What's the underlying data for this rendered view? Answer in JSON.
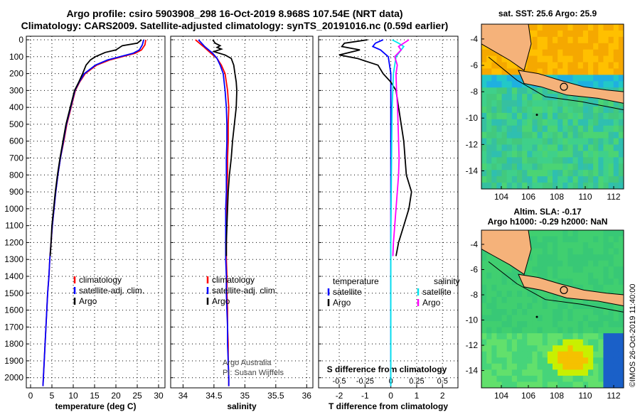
{
  "header": {
    "title_line1": "Argo profile: csiro 5903908_298 16-Oct-2019 8.968S 107.54E (NRT data)",
    "title_line2": "Climatology: CARS2009. Satellite-adjusted climatology: synTS_20191016.nc (0.59d earlier)"
  },
  "credit": "©IMOS 26-Oct-2019 11:40:00",
  "watermark": [
    "Argo Australia",
    "PI: Susan Wijffels"
  ],
  "colors": {
    "climatology": "#ff0000",
    "satellite": "#0000ff",
    "argo": "#000000",
    "sat_salinity": "#00e5ee",
    "argo_salinity": "#ff00ff",
    "land": "#f5b27a"
  },
  "chart_data": [
    {
      "type": "line",
      "id": "temperature",
      "xlabel": "temperature (deg C)",
      "ylabel": "",
      "xlim": [
        -1,
        31.5
      ],
      "ylim": [
        2060,
        0
      ],
      "xticks": [
        0,
        5,
        10,
        15,
        20,
        25,
        30
      ],
      "yticks": [
        0,
        100,
        200,
        300,
        400,
        500,
        600,
        700,
        800,
        900,
        1000,
        1100,
        1200,
        1300,
        1400,
        1500,
        1600,
        1700,
        1800,
        1900,
        2000
      ],
      "grid": true,
      "legend": {
        "position": "lower-center",
        "entries": [
          "climatology",
          "satellite-adj. clim.",
          "Argo"
        ]
      },
      "series": [
        {
          "name": "climatology",
          "color": "#ff0000",
          "points": [
            [
              27.0,
              0
            ],
            [
              26.8,
              30
            ],
            [
              26.0,
              60
            ],
            [
              24.5,
              80
            ],
            [
              21.5,
              100
            ],
            [
              18.5,
              120
            ],
            [
              15.5,
              150
            ],
            [
              12.8,
              200
            ],
            [
              11.5,
              250
            ],
            [
              10.5,
              300
            ],
            [
              9.5,
              400
            ],
            [
              8.5,
              500
            ],
            [
              7.8,
              600
            ],
            [
              7.0,
              700
            ],
            [
              6.4,
              800
            ],
            [
              5.9,
              900
            ],
            [
              5.5,
              1000
            ],
            [
              5.1,
              1100
            ],
            [
              4.8,
              1200
            ],
            [
              4.5,
              1300
            ],
            [
              4.3,
              1400
            ],
            [
              4.0,
              1500
            ],
            [
              3.8,
              1600
            ],
            [
              3.6,
              1700
            ],
            [
              3.4,
              1800
            ],
            [
              3.2,
              1900
            ],
            [
              3.0,
              2000
            ],
            [
              2.9,
              2050
            ]
          ]
        },
        {
          "name": "satellite-adj. clim.",
          "color": "#0000ff",
          "points": [
            [
              26.5,
              0
            ],
            [
              26.2,
              30
            ],
            [
              25.5,
              60
            ],
            [
              24.0,
              80
            ],
            [
              21.0,
              100
            ],
            [
              18.0,
              120
            ],
            [
              15.2,
              150
            ],
            [
              12.6,
              200
            ],
            [
              11.4,
              250
            ],
            [
              10.4,
              300
            ],
            [
              9.4,
              400
            ],
            [
              8.4,
              500
            ],
            [
              7.7,
              600
            ],
            [
              7.0,
              700
            ],
            [
              6.4,
              800
            ],
            [
              5.9,
              900
            ],
            [
              5.5,
              1000
            ],
            [
              5.1,
              1100
            ],
            [
              4.8,
              1200
            ],
            [
              4.5,
              1300
            ],
            [
              4.3,
              1400
            ],
            [
              4.0,
              1500
            ],
            [
              3.8,
              1600
            ],
            [
              3.6,
              1700
            ],
            [
              3.4,
              1800
            ],
            [
              3.2,
              1900
            ],
            [
              3.0,
              2000
            ],
            [
              2.9,
              2050
            ]
          ]
        },
        {
          "name": "Argo",
          "color": "#000000",
          "points": [
            [
              26.0,
              0
            ],
            [
              25.0,
              20
            ],
            [
              21.5,
              35
            ],
            [
              20.0,
              60
            ],
            [
              17.5,
              75
            ],
            [
              15.2,
              100
            ],
            [
              14.0,
              120
            ],
            [
              13.0,
              150
            ],
            [
              12.2,
              200
            ],
            [
              11.3,
              250
            ],
            [
              10.3,
              300
            ],
            [
              9.3,
              400
            ],
            [
              8.3,
              500
            ],
            [
              7.6,
              600
            ],
            [
              6.9,
              700
            ],
            [
              6.3,
              800
            ],
            [
              5.8,
              900
            ],
            [
              5.4,
              1000
            ],
            [
              5.0,
              1100
            ],
            [
              4.8,
              1200
            ],
            [
              4.6,
              1280
            ]
          ]
        }
      ]
    },
    {
      "type": "line",
      "id": "salinity",
      "xlabel": "salinity",
      "ylabel": "",
      "xlim": [
        33.8,
        36.1
      ],
      "ylim": [
        2060,
        0
      ],
      "xticks": [
        34,
        34.5,
        35,
        35.5,
        36
      ],
      "grid": true,
      "legend": {
        "position": "lower-center",
        "entries": [
          "climatology",
          "satellite-adj. clim.",
          "Argo"
        ]
      },
      "series": [
        {
          "name": "climatology",
          "color": "#ff0000",
          "points": [
            [
              34.2,
              0
            ],
            [
              34.33,
              40
            ],
            [
              34.45,
              80
            ],
            [
              34.55,
              110
            ],
            [
              34.62,
              150
            ],
            [
              34.68,
              200
            ],
            [
              34.72,
              300
            ],
            [
              34.74,
              400
            ],
            [
              34.73,
              500
            ],
            [
              34.73,
              600
            ],
            [
              34.72,
              700
            ],
            [
              34.72,
              800
            ],
            [
              34.71,
              900
            ],
            [
              34.7,
              1000
            ],
            [
              34.7,
              1100
            ],
            [
              34.7,
              1200
            ],
            [
              34.7,
              1300
            ],
            [
              34.71,
              1400
            ],
            [
              34.71,
              1500
            ],
            [
              34.72,
              1600
            ],
            [
              34.72,
              1700
            ],
            [
              34.73,
              1800
            ],
            [
              34.73,
              1900
            ],
            [
              34.74,
              2000
            ],
            [
              34.74,
              2050
            ]
          ]
        },
        {
          "name": "satellite-adj. clim.",
          "color": "#0000ff",
          "points": [
            [
              34.25,
              0
            ],
            [
              34.35,
              40
            ],
            [
              34.48,
              80
            ],
            [
              34.55,
              110
            ],
            [
              34.6,
              150
            ],
            [
              34.65,
              200
            ],
            [
              34.68,
              300
            ],
            [
              34.7,
              400
            ],
            [
              34.71,
              500
            ],
            [
              34.71,
              600
            ],
            [
              34.7,
              700
            ],
            [
              34.7,
              800
            ],
            [
              34.7,
              900
            ],
            [
              34.69,
              1000
            ],
            [
              34.69,
              1100
            ],
            [
              34.69,
              1200
            ],
            [
              34.69,
              1300
            ],
            [
              34.7,
              1400
            ],
            [
              34.7,
              1500
            ],
            [
              34.71,
              1600
            ],
            [
              34.72,
              1700
            ],
            [
              34.72,
              1800
            ],
            [
              34.73,
              1900
            ],
            [
              34.74,
              2000
            ],
            [
              34.74,
              2050
            ]
          ]
        },
        {
          "name": "Argo",
          "color": "#000000",
          "points": [
            [
              34.48,
              0
            ],
            [
              34.52,
              20
            ],
            [
              34.6,
              35
            ],
            [
              34.55,
              45
            ],
            [
              34.62,
              55
            ],
            [
              34.5,
              70
            ],
            [
              34.68,
              90
            ],
            [
              34.78,
              110
            ],
            [
              34.82,
              150
            ],
            [
              34.84,
              200
            ],
            [
              34.86,
              250
            ],
            [
              34.87,
              300
            ],
            [
              34.86,
              400
            ],
            [
              34.83,
              500
            ],
            [
              34.8,
              600
            ],
            [
              34.78,
              700
            ],
            [
              34.75,
              800
            ],
            [
              34.73,
              900
            ],
            [
              34.72,
              1000
            ],
            [
              34.71,
              1100
            ],
            [
              34.7,
              1200
            ],
            [
              34.7,
              1280
            ]
          ]
        }
      ]
    },
    {
      "type": "line",
      "id": "difference",
      "xlabel": "T difference from climatology",
      "secondary_xlabel": "S difference from climatology",
      "xlim": [
        -2.8,
        2.6
      ],
      "secondary_xlim": [
        -0.7,
        0.65
      ],
      "ylim": [
        2060,
        0
      ],
      "xticks": [
        -2,
        -1,
        0,
        1,
        2
      ],
      "secondary_xticks": [
        -0.5,
        -0.25,
        0,
        0.25,
        0.5
      ],
      "grid": true,
      "legend": {
        "position": "lower-center",
        "entries": [
          "temperature",
          "satellite",
          "Argo",
          "salinity",
          "satellite",
          "Argo"
        ]
      },
      "series": [
        {
          "name": "satellite",
          "color": "#0000ff",
          "points": [
            [
              -0.3,
              0
            ],
            [
              -0.6,
              20
            ],
            [
              -0.7,
              40
            ],
            [
              -0.4,
              60
            ],
            [
              -0.1,
              100
            ],
            [
              0.0,
              200
            ],
            [
              0.0,
              400
            ],
            [
              0.0,
              800
            ],
            [
              0.0,
              1200
            ],
            [
              0.0,
              1600
            ],
            [
              0.0,
              2050
            ]
          ]
        },
        {
          "name": "Argo",
          "color": "#000000",
          "points": [
            [
              -0.9,
              0
            ],
            [
              -1.8,
              20
            ],
            [
              -1.9,
              40
            ],
            [
              -1.2,
              60
            ],
            [
              -2.0,
              90
            ],
            [
              -1.3,
              110
            ],
            [
              -0.5,
              150
            ],
            [
              -0.3,
              200
            ],
            [
              0.0,
              250
            ],
            [
              0.2,
              300
            ],
            [
              0.3,
              400
            ],
            [
              0.5,
              600
            ],
            [
              0.6,
              800
            ],
            [
              0.8,
              900
            ],
            [
              0.7,
              1000
            ],
            [
              0.5,
              1100
            ],
            [
              0.3,
              1200
            ],
            [
              0.2,
              1280
            ]
          ]
        },
        {
          "name": "satellite",
          "color": "#00e5ee",
          "points": [
            [
              0.05,
              0
            ],
            [
              0.3,
              20
            ],
            [
              0.5,
              40
            ],
            [
              0.4,
              60
            ],
            [
              0.2,
              100
            ],
            [
              0.1,
              200
            ],
            [
              0.05,
              400
            ],
            [
              0.02,
              800
            ],
            [
              0.0,
              1200
            ],
            [
              0.0,
              1600
            ],
            [
              0.0,
              2050
            ]
          ]
        },
        {
          "name": "Argo",
          "color": "#ff00ff",
          "points": [
            [
              0.7,
              0
            ],
            [
              0.5,
              20
            ],
            [
              0.3,
              40
            ],
            [
              0.4,
              60
            ],
            [
              0.15,
              100
            ],
            [
              0.25,
              150
            ],
            [
              0.2,
              200
            ],
            [
              0.22,
              300
            ],
            [
              0.26,
              400
            ],
            [
              0.28,
              500
            ],
            [
              0.3,
              600
            ],
            [
              0.32,
              700
            ],
            [
              0.3,
              800
            ],
            [
              0.25,
              900
            ],
            [
              0.2,
              1000
            ],
            [
              0.15,
              1100
            ],
            [
              0.1,
              1200
            ],
            [
              0.08,
              1280
            ]
          ]
        }
      ]
    }
  ],
  "maps": [
    {
      "id": "sst",
      "title": "sat. SST: 25.6 Argo: 25.9",
      "xticks": [
        "104",
        "106",
        "108",
        "110",
        "112"
      ],
      "yticks": [
        "-4",
        "-6",
        "-8",
        "-10",
        "-12",
        "-14"
      ],
      "field": "SST"
    },
    {
      "id": "sla",
      "title_line1": "Altim. SLA: -0.17",
      "title_line2": "Argo h1000: -0.29 h2000: NaN",
      "xticks": [
        "104",
        "106",
        "108",
        "110",
        "112"
      ],
      "yticks": [
        "-4",
        "-6",
        "-8",
        "-10",
        "-12",
        "-14"
      ],
      "field": "SLA"
    }
  ]
}
